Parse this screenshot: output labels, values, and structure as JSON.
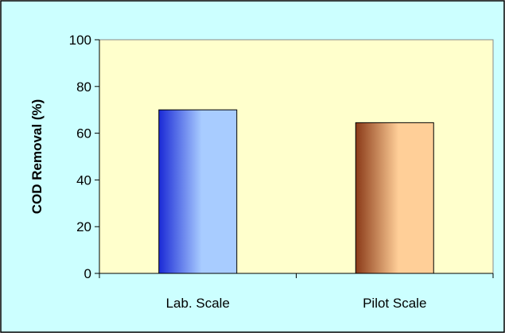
{
  "chart_data": {
    "type": "bar",
    "title": "",
    "xlabel": "",
    "ylabel": "COD Removal (%)",
    "categories": [
      "Lab. Scale",
      "Pilot Scale"
    ],
    "values": [
      70,
      64.5
    ],
    "ylim": [
      0,
      100
    ],
    "yticks": [
      "0",
      "20",
      "40",
      "60",
      "80",
      "100"
    ],
    "grid": false,
    "legend": "none",
    "colors": {
      "chart_background": "#ccffff",
      "plot_background": "#ffffcc",
      "bar_lab_dark": "#1a2ad6",
      "bar_lab_light": "#a8ccff",
      "bar_pilot_dark": "#8a3a18",
      "bar_pilot_light": "#ffcf98"
    }
  }
}
